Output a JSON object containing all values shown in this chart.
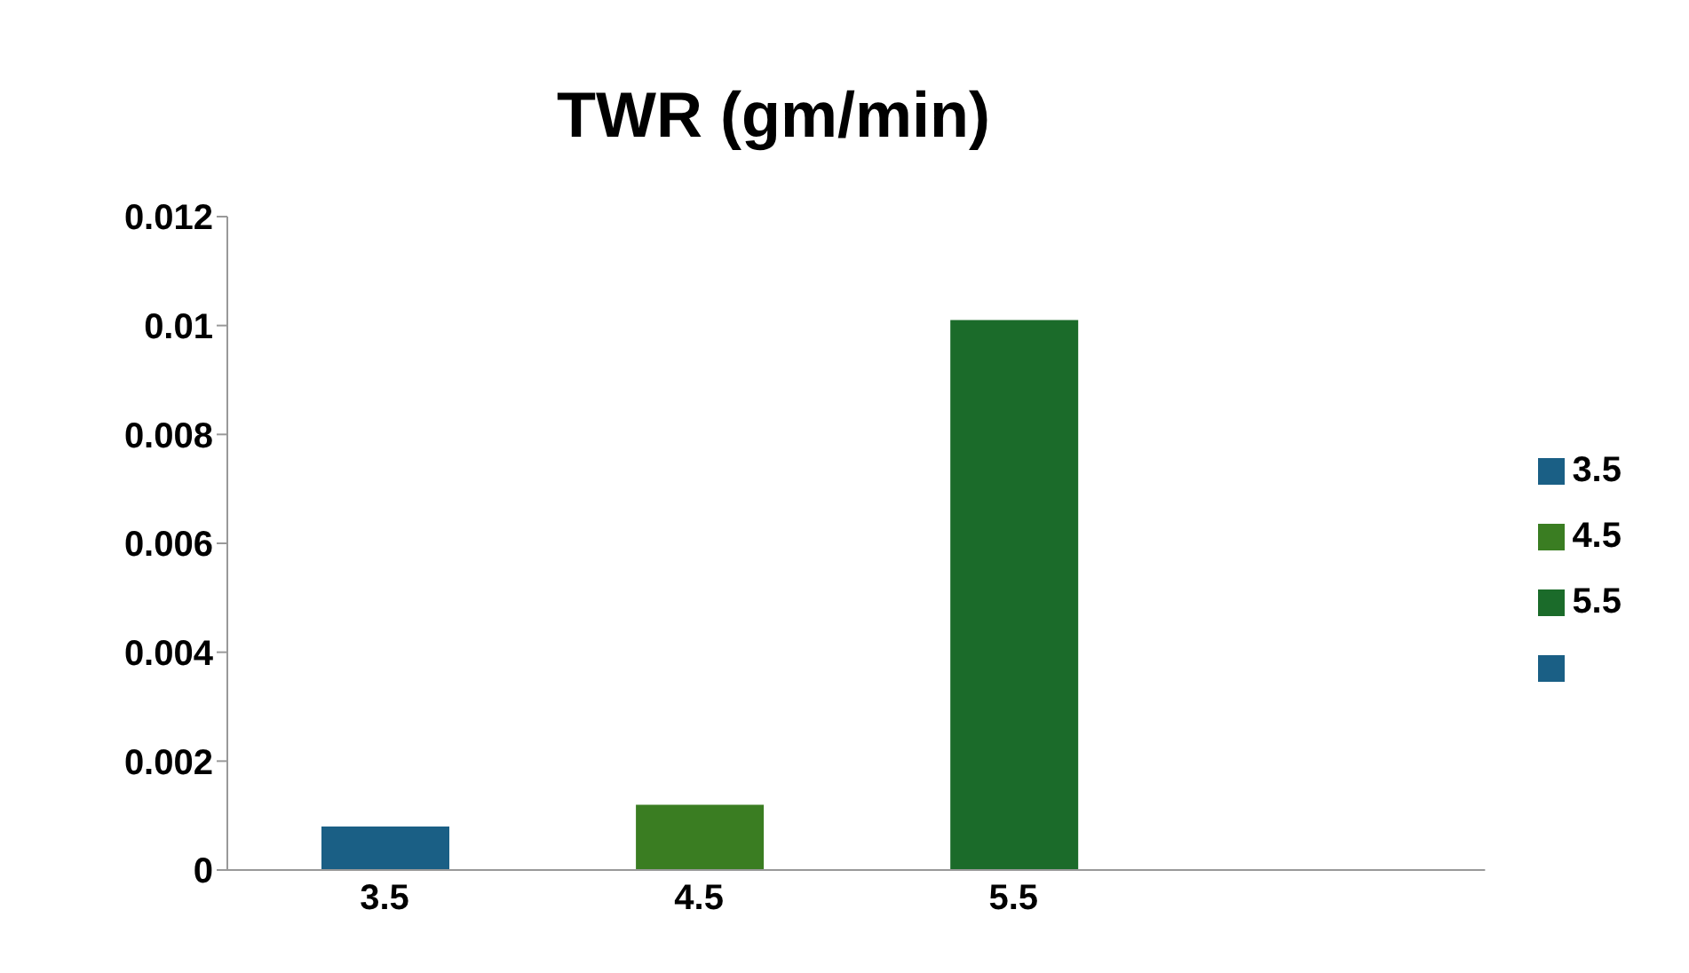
{
  "chart_data": {
    "type": "bar",
    "title": "TWR (gm/min)",
    "categories": [
      "3.5",
      "4.5",
      "5.5",
      null
    ],
    "series": [
      {
        "name": "3.5",
        "color": "#1a5f85",
        "values": [
          0.0008,
          null,
          null,
          null
        ]
      },
      {
        "name": "4.5",
        "color": "#3a7d22",
        "values": [
          null,
          0.0012,
          null,
          null
        ]
      },
      {
        "name": "5.5",
        "color": "#1b6b2a",
        "values": [
          null,
          null,
          0.0101,
          null
        ]
      },
      {
        "color": "#1a5f85",
        "values": [
          null,
          null,
          null,
          null
        ]
      }
    ],
    "ylim": [
      0,
      0.012
    ],
    "yticks": [
      0,
      0.002,
      0.004,
      0.006,
      0.008,
      0.01,
      0.012
    ],
    "legend": "right",
    "grid": false
  }
}
